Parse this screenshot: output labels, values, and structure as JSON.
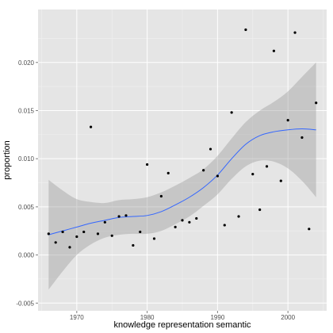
{
  "chart_data": {
    "type": "scatter",
    "title": "",
    "xlabel": "knowledge representation semantic",
    "ylabel": "proportion",
    "xlim": [
      1964.5,
      2005.5
    ],
    "ylim": [
      -0.0058,
      0.0255
    ],
    "grid": true,
    "legend": "none",
    "x_ticks": [
      1970,
      1980,
      1990,
      2000
    ],
    "x_tick_labels": [
      "1970",
      "1980",
      "1990",
      "2000"
    ],
    "y_ticks": [
      -0.005,
      0.0,
      0.005,
      0.01,
      0.015,
      0.02
    ],
    "y_tick_labels": [
      "-0.005",
      "0.000",
      "0.005",
      "0.010",
      "0.015",
      "0.020"
    ],
    "colors": {
      "panel": "#e5e5e5",
      "grid_major": "#ffffff",
      "grid_minor": "#f2f2f2",
      "point": "#000000",
      "trend_line": "#3366ff",
      "ribbon": "#999999"
    },
    "points": [
      {
        "x": 1966,
        "y": 0.0022
      },
      {
        "x": 1967,
        "y": 0.0013
      },
      {
        "x": 1968,
        "y": 0.0024
      },
      {
        "x": 1969,
        "y": 0.0008
      },
      {
        "x": 1970,
        "y": 0.0019
      },
      {
        "x": 1971,
        "y": 0.0024
      },
      {
        "x": 1972,
        "y": 0.0133
      },
      {
        "x": 1973,
        "y": 0.0022
      },
      {
        "x": 1974,
        "y": 0.0034
      },
      {
        "x": 1975,
        "y": 0.002
      },
      {
        "x": 1976,
        "y": 0.004
      },
      {
        "x": 1977,
        "y": 0.0041
      },
      {
        "x": 1978,
        "y": 0.001
      },
      {
        "x": 1979,
        "y": 0.0024
      },
      {
        "x": 1980,
        "y": 0.0094
      },
      {
        "x": 1981,
        "y": 0.0017
      },
      {
        "x": 1982,
        "y": 0.0061
      },
      {
        "x": 1983,
        "y": 0.0085
      },
      {
        "x": 1984,
        "y": 0.0029
      },
      {
        "x": 1985,
        "y": 0.0036
      },
      {
        "x": 1986,
        "y": 0.0034
      },
      {
        "x": 1987,
        "y": 0.0038
      },
      {
        "x": 1988,
        "y": 0.0088
      },
      {
        "x": 1989,
        "y": 0.011
      },
      {
        "x": 1990,
        "y": 0.0082
      },
      {
        "x": 1991,
        "y": 0.0031
      },
      {
        "x": 1992,
        "y": 0.0148
      },
      {
        "x": 1993,
        "y": 0.004
      },
      {
        "x": 1994,
        "y": 0.0234
      },
      {
        "x": 1995,
        "y": 0.0084
      },
      {
        "x": 1996,
        "y": 0.0047
      },
      {
        "x": 1997,
        "y": 0.0092
      },
      {
        "x": 1998,
        "y": 0.0212
      },
      {
        "x": 1999,
        "y": 0.0077
      },
      {
        "x": 2000,
        "y": 0.014
      },
      {
        "x": 2001,
        "y": 0.0231
      },
      {
        "x": 2002,
        "y": 0.0122
      },
      {
        "x": 2003,
        "y": 0.0027
      },
      {
        "x": 2004,
        "y": 0.0158
      }
    ],
    "smooth": {
      "x": [
        1966,
        1968,
        1970,
        1972,
        1974,
        1976,
        1978,
        1980,
        1982,
        1984,
        1986,
        1988,
        1990,
        1992,
        1994,
        1996,
        1998,
        2000,
        2002,
        2004
      ],
      "y": [
        0.0021,
        0.0025,
        0.0029,
        0.0033,
        0.0036,
        0.0039,
        0.004,
        0.0041,
        0.0045,
        0.0052,
        0.006,
        0.007,
        0.0083,
        0.01,
        0.0115,
        0.0124,
        0.0128,
        0.013,
        0.0131,
        0.013
      ],
      "lower": [
        -0.0036,
        -0.0017,
        0.0,
        0.0011,
        0.0018,
        0.0021,
        0.0022,
        0.0022,
        0.0025,
        0.0032,
        0.004,
        0.0051,
        0.0063,
        0.0079,
        0.0092,
        0.0098,
        0.0097,
        0.009,
        0.0077,
        0.006
      ],
      "upper": [
        0.0078,
        0.0067,
        0.0058,
        0.0055,
        0.0054,
        0.0057,
        0.0058,
        0.006,
        0.0065,
        0.0072,
        0.008,
        0.0089,
        0.0103,
        0.0121,
        0.0138,
        0.015,
        0.0159,
        0.017,
        0.0185,
        0.02
      ]
    }
  }
}
